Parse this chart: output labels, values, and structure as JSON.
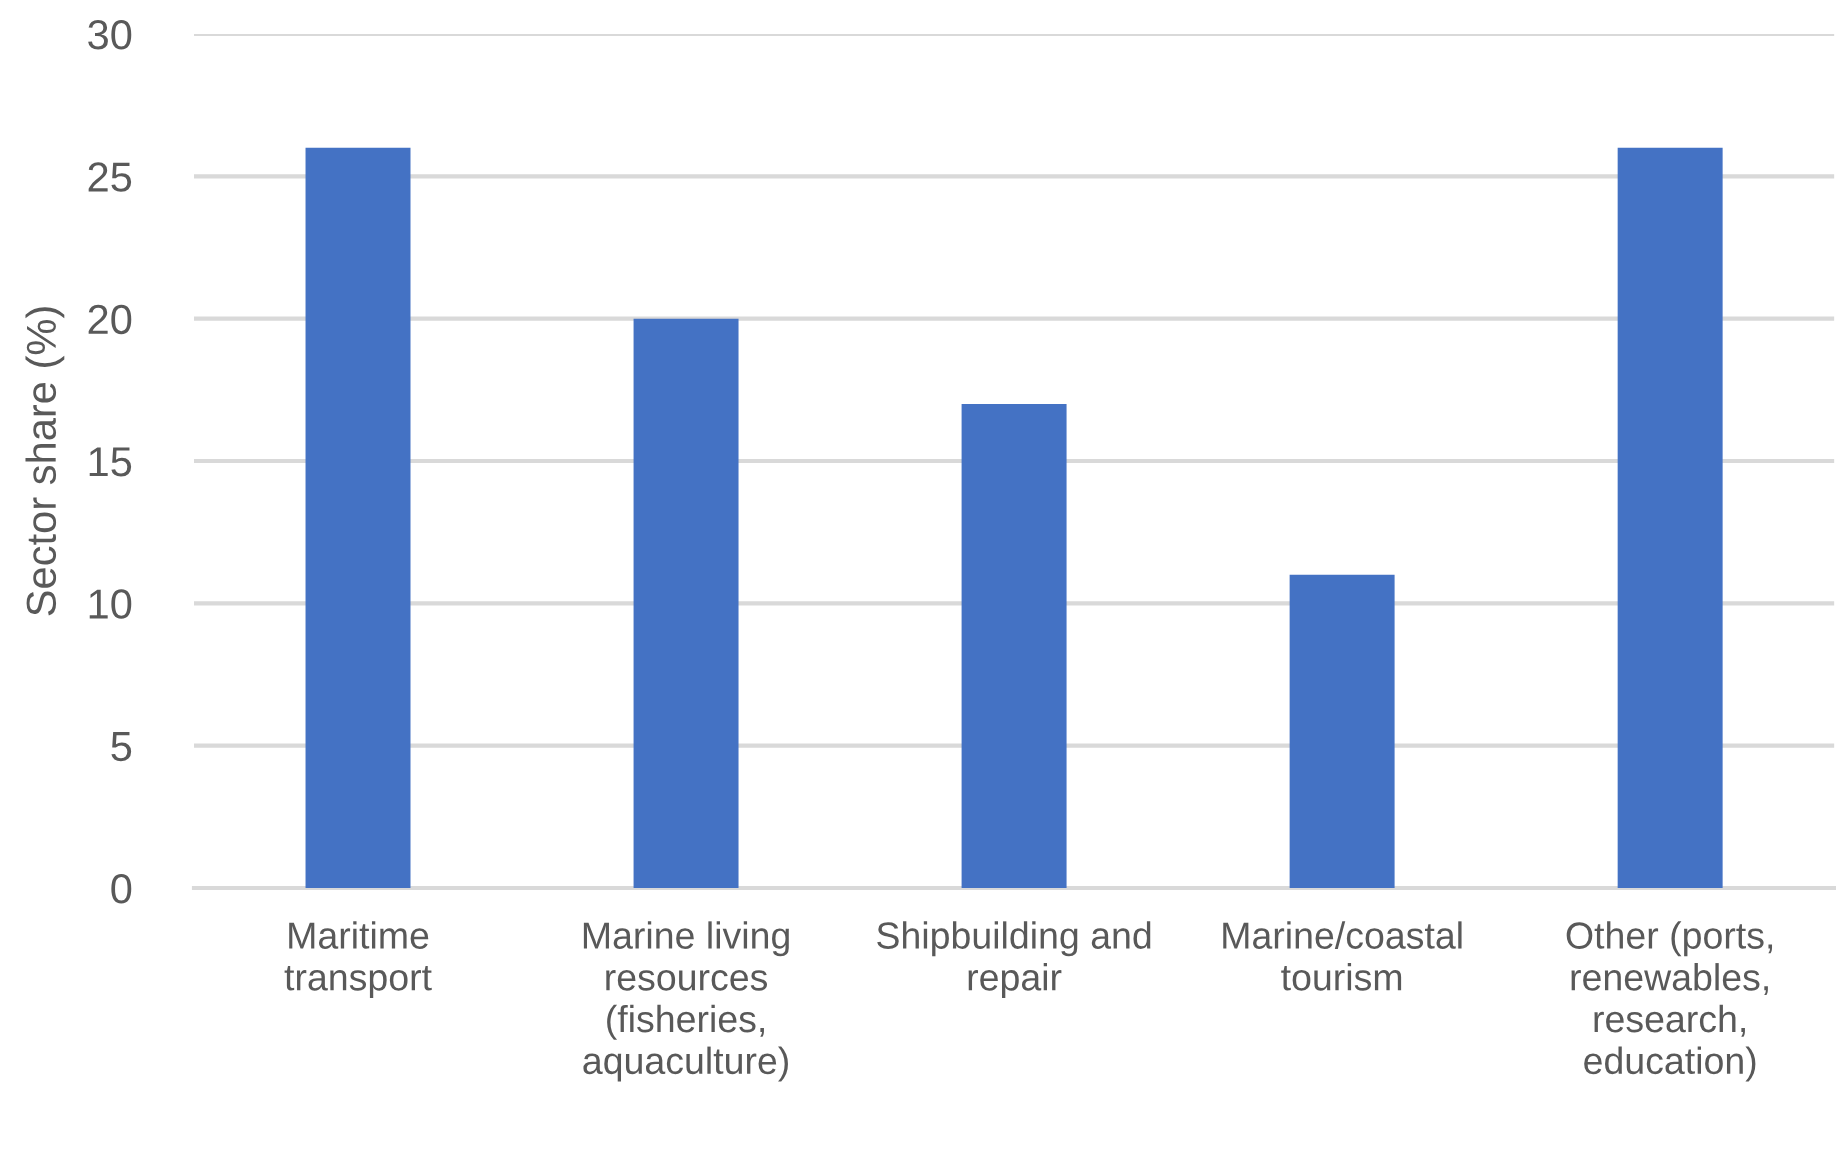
{
  "chart_data": {
    "type": "bar",
    "categories": [
      "Maritime\ntransport",
      "Marine living\nresources\n(fisheries,\naquaculture)",
      "Shipbuilding and\nrepair",
      "Marine/coastal\ntourism",
      "Other (ports,\nrenewables,\nresearch,\neducation)"
    ],
    "values": [
      26,
      20,
      17,
      11,
      26
    ],
    "color": "#4472c4",
    "ylabel": "Sector share (%)",
    "ylim": [
      0,
      30
    ],
    "yticks": [
      0,
      5,
      10,
      15,
      20,
      25,
      30
    ],
    "grid": "y"
  }
}
